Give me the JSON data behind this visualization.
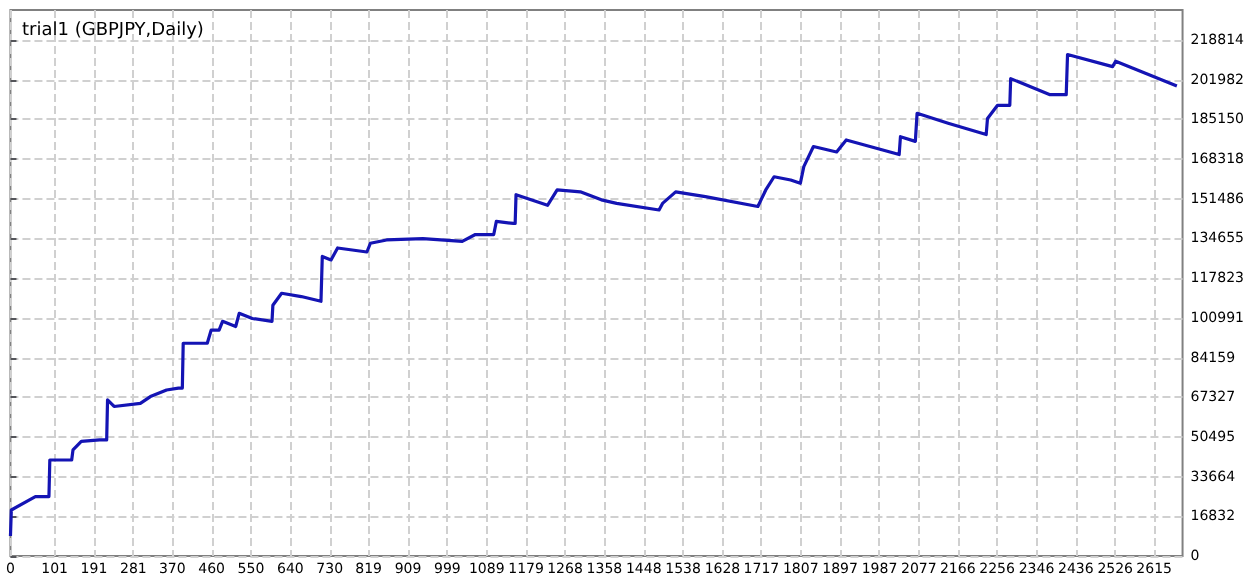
{
  "chart_data": {
    "type": "line",
    "title": "trial1 (GBPJPY,Daily)",
    "series": [
      {
        "color": "#1414b4",
        "x": [
          0,
          2,
          57,
          80,
          88,
          90,
          140,
          143,
          162,
          204,
          220,
          222,
          237,
          297,
          320,
          357,
          384,
          393,
          395,
          450,
          459,
          477,
          485,
          515,
          523,
          553,
          598,
          600,
          620,
          665,
          710,
          712,
          713,
          733,
          748,
          815,
          823,
          860,
          943,
          1033,
          1063,
          1105,
          1111,
          1150,
          1154,
          1156,
          1228,
          1250,
          1303,
          1351,
          1386,
          1483,
          1491,
          1521,
          1589,
          1709,
          1727,
          1746,
          1784,
          1806,
          1814,
          1836,
          1889,
          1911,
          2032,
          2035,
          2069,
          2071,
          2073,
          2144,
          2231,
          2234,
          2257,
          2279,
          2285,
          2287,
          2377,
          2414,
          2415,
          2417,
          2520,
          2527,
          2595,
          2667
        ],
        "values": [
          8500,
          19500,
          25200,
          25200,
          25200,
          40700,
          40700,
          45000,
          48600,
          49200,
          49200,
          66200,
          63400,
          64700,
          67600,
          70400,
          71200,
          71200,
          90200,
          90200,
          95800,
          95800,
          99500,
          97300,
          102900,
          100700,
          99500,
          106300,
          111400,
          110000,
          108000,
          108000,
          127000,
          125500,
          130600,
          128900,
          132600,
          134000,
          134600,
          133400,
          136300,
          136300,
          141900,
          141000,
          141000,
          153200,
          148700,
          155200,
          154400,
          151000,
          149500,
          146700,
          149500,
          154400,
          152400,
          148200,
          155200,
          160800,
          159400,
          158000,
          165100,
          173600,
          171300,
          176400,
          170200,
          177800,
          175800,
          175800,
          187700,
          183500,
          178700,
          185500,
          191100,
          191100,
          191100,
          202400,
          195600,
          195600,
          195600,
          212600,
          207500,
          209800,
          204700,
          199300
        ]
      }
    ],
    "xlim": [
      0,
      2680
    ],
    "xticks": [
      0,
      101,
      191,
      281,
      370,
      460,
      550,
      640,
      730,
      819,
      909,
      999,
      1089,
      1179,
      1268,
      1358,
      1448,
      1538,
      1628,
      1717,
      1807,
      1897,
      1987,
      2077,
      2166,
      2256,
      2346,
      2436,
      2526,
      2615
    ],
    "ylim": [
      0,
      231500
    ],
    "yticks": [
      0,
      16832,
      33664,
      50495,
      67327,
      84159,
      100991,
      117823,
      134655,
      151486,
      168318,
      185150,
      201982,
      218814
    ],
    "grid": true,
    "marker": "none",
    "line_style": "solid"
  }
}
